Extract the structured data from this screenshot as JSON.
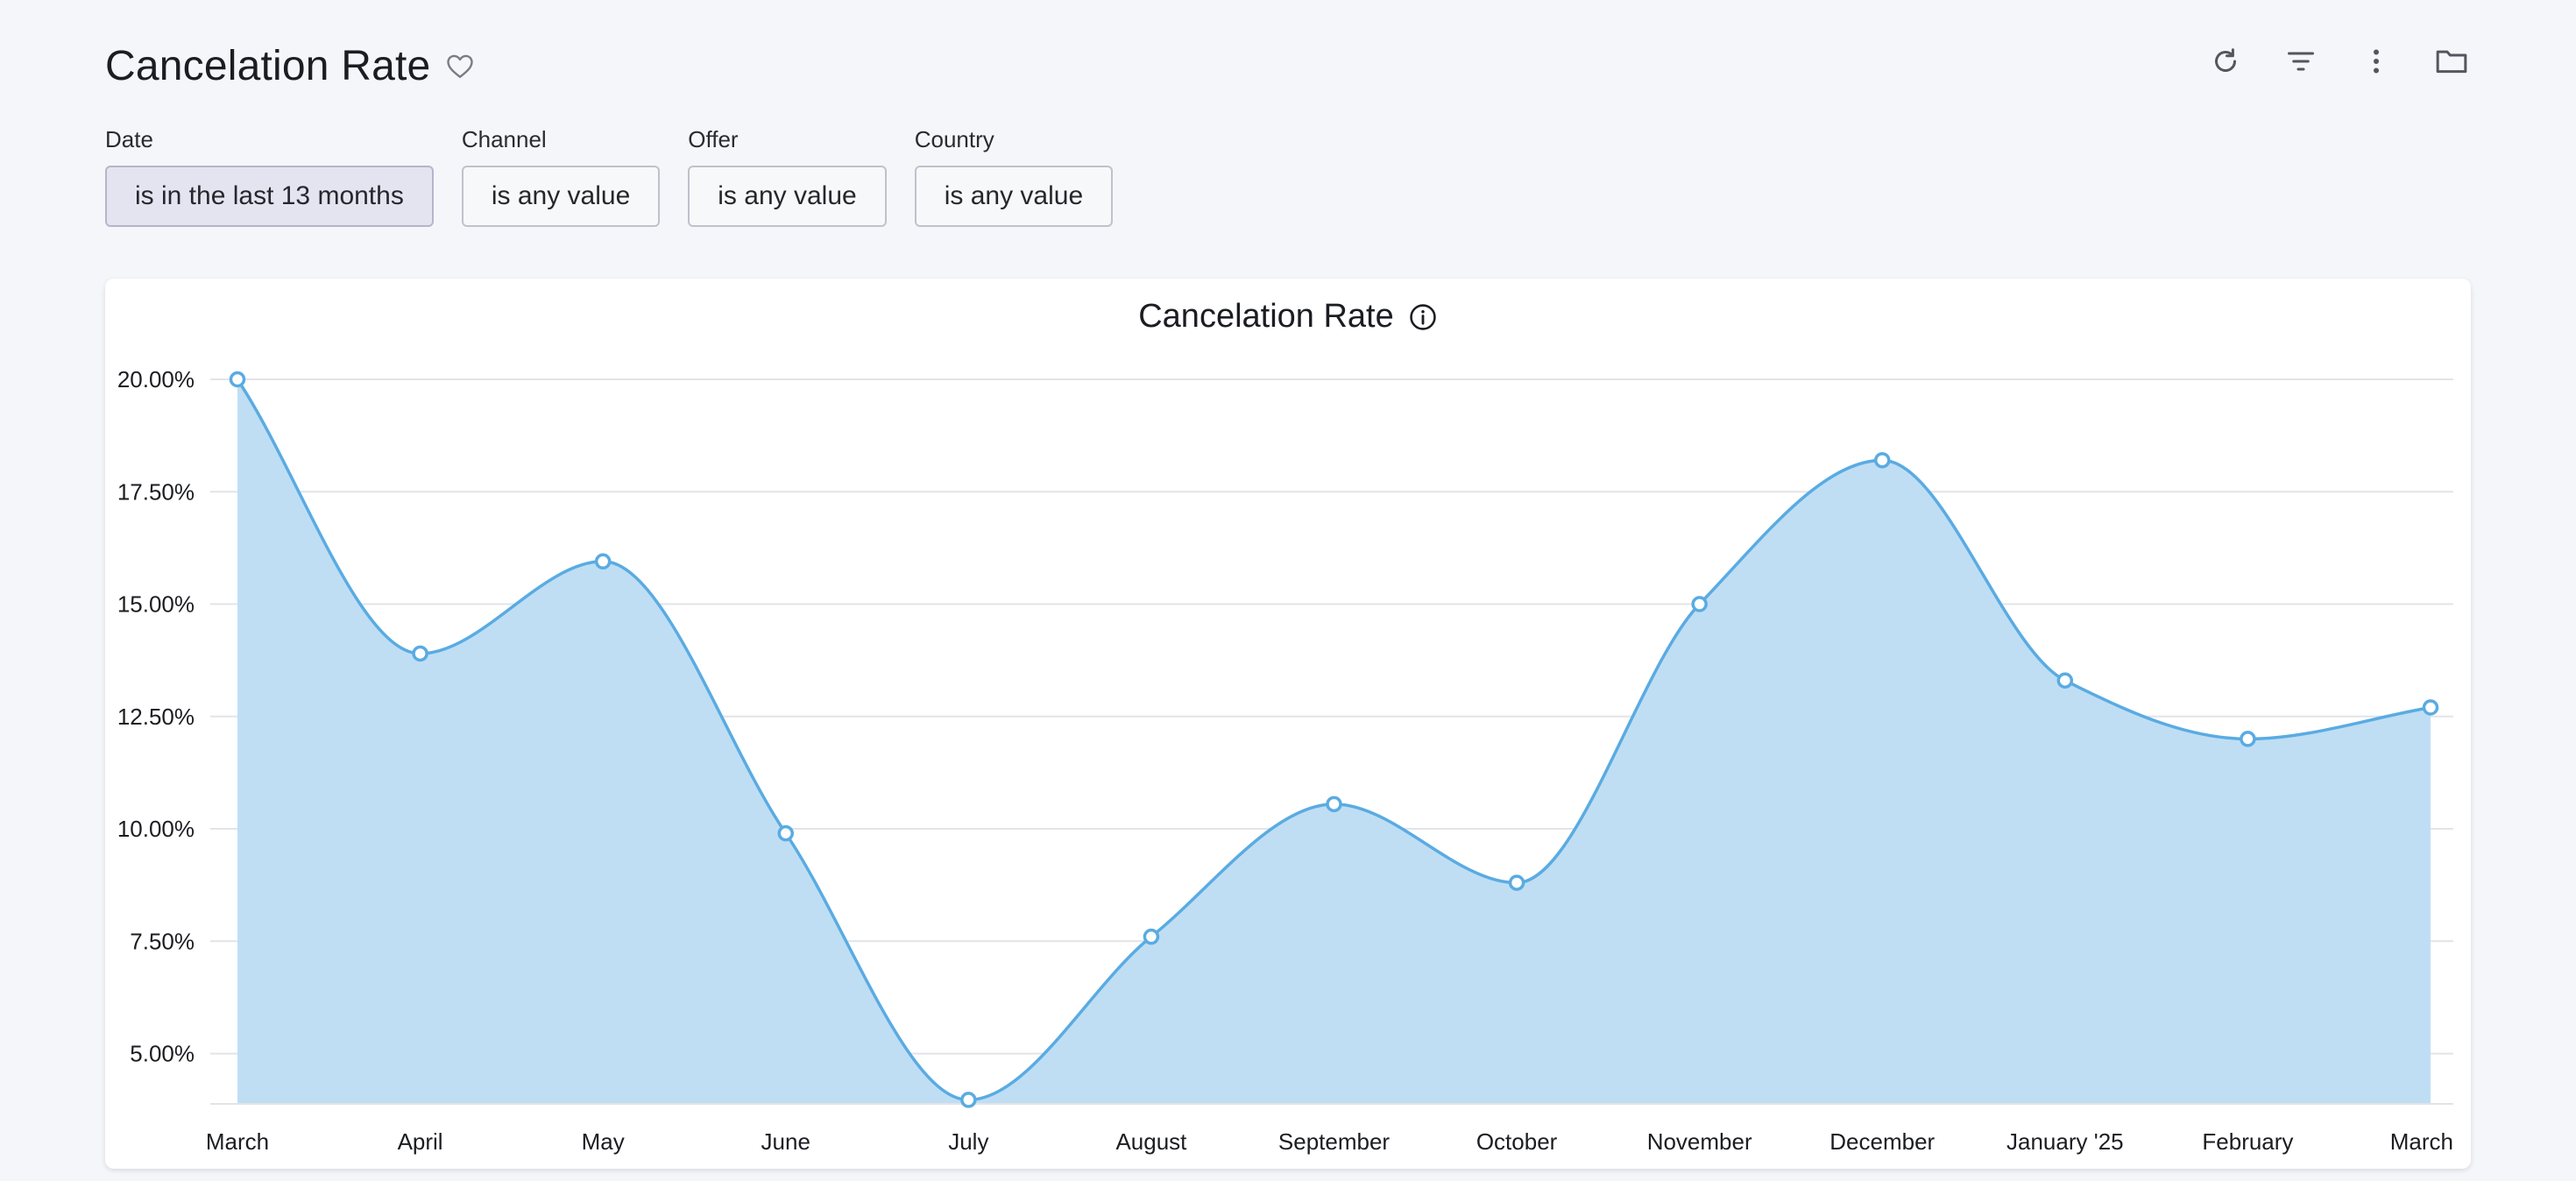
{
  "page": {
    "title": "Cancelation Rate",
    "favorite_icon": "heart-outline-icon"
  },
  "toolbar": {
    "icons": [
      "refresh-icon",
      "filter-icon",
      "more-vertical-icon",
      "folder-icon"
    ]
  },
  "filters": [
    {
      "label": "Date",
      "value": "is in the last 13 months",
      "active": true
    },
    {
      "label": "Channel",
      "value": "is any value",
      "active": false
    },
    {
      "label": "Offer",
      "value": "is any value",
      "active": false
    },
    {
      "label": "Country",
      "value": "is any value",
      "active": false
    }
  ],
  "colors": {
    "line": "#5aabe2",
    "area": "#bfdef4",
    "grid": "#e3e4e8",
    "background": "#f5f6fa"
  },
  "chart_data": {
    "type": "area",
    "title": "Cancelation Rate",
    "info_icon": "info-icon",
    "categories": [
      "March",
      "April",
      "May",
      "June",
      "July",
      "August",
      "September",
      "October",
      "November",
      "December",
      "January '25",
      "February",
      "March"
    ],
    "series": [
      {
        "values": [
          20.0,
          13.9,
          15.95,
          9.9,
          3.97,
          7.6,
          10.55,
          8.8,
          15.0,
          18.2,
          13.3,
          12.0,
          12.7
        ]
      }
    ],
    "yticks": [
      "5.00%",
      "7.50%",
      "10.00%",
      "12.50%",
      "15.00%",
      "17.50%",
      "20.00%"
    ],
    "ytick_values": [
      5,
      7.5,
      10,
      12.5,
      15,
      17.5,
      20
    ],
    "ylim": [
      3.9,
      20
    ],
    "grid": true,
    "legend": "none"
  }
}
